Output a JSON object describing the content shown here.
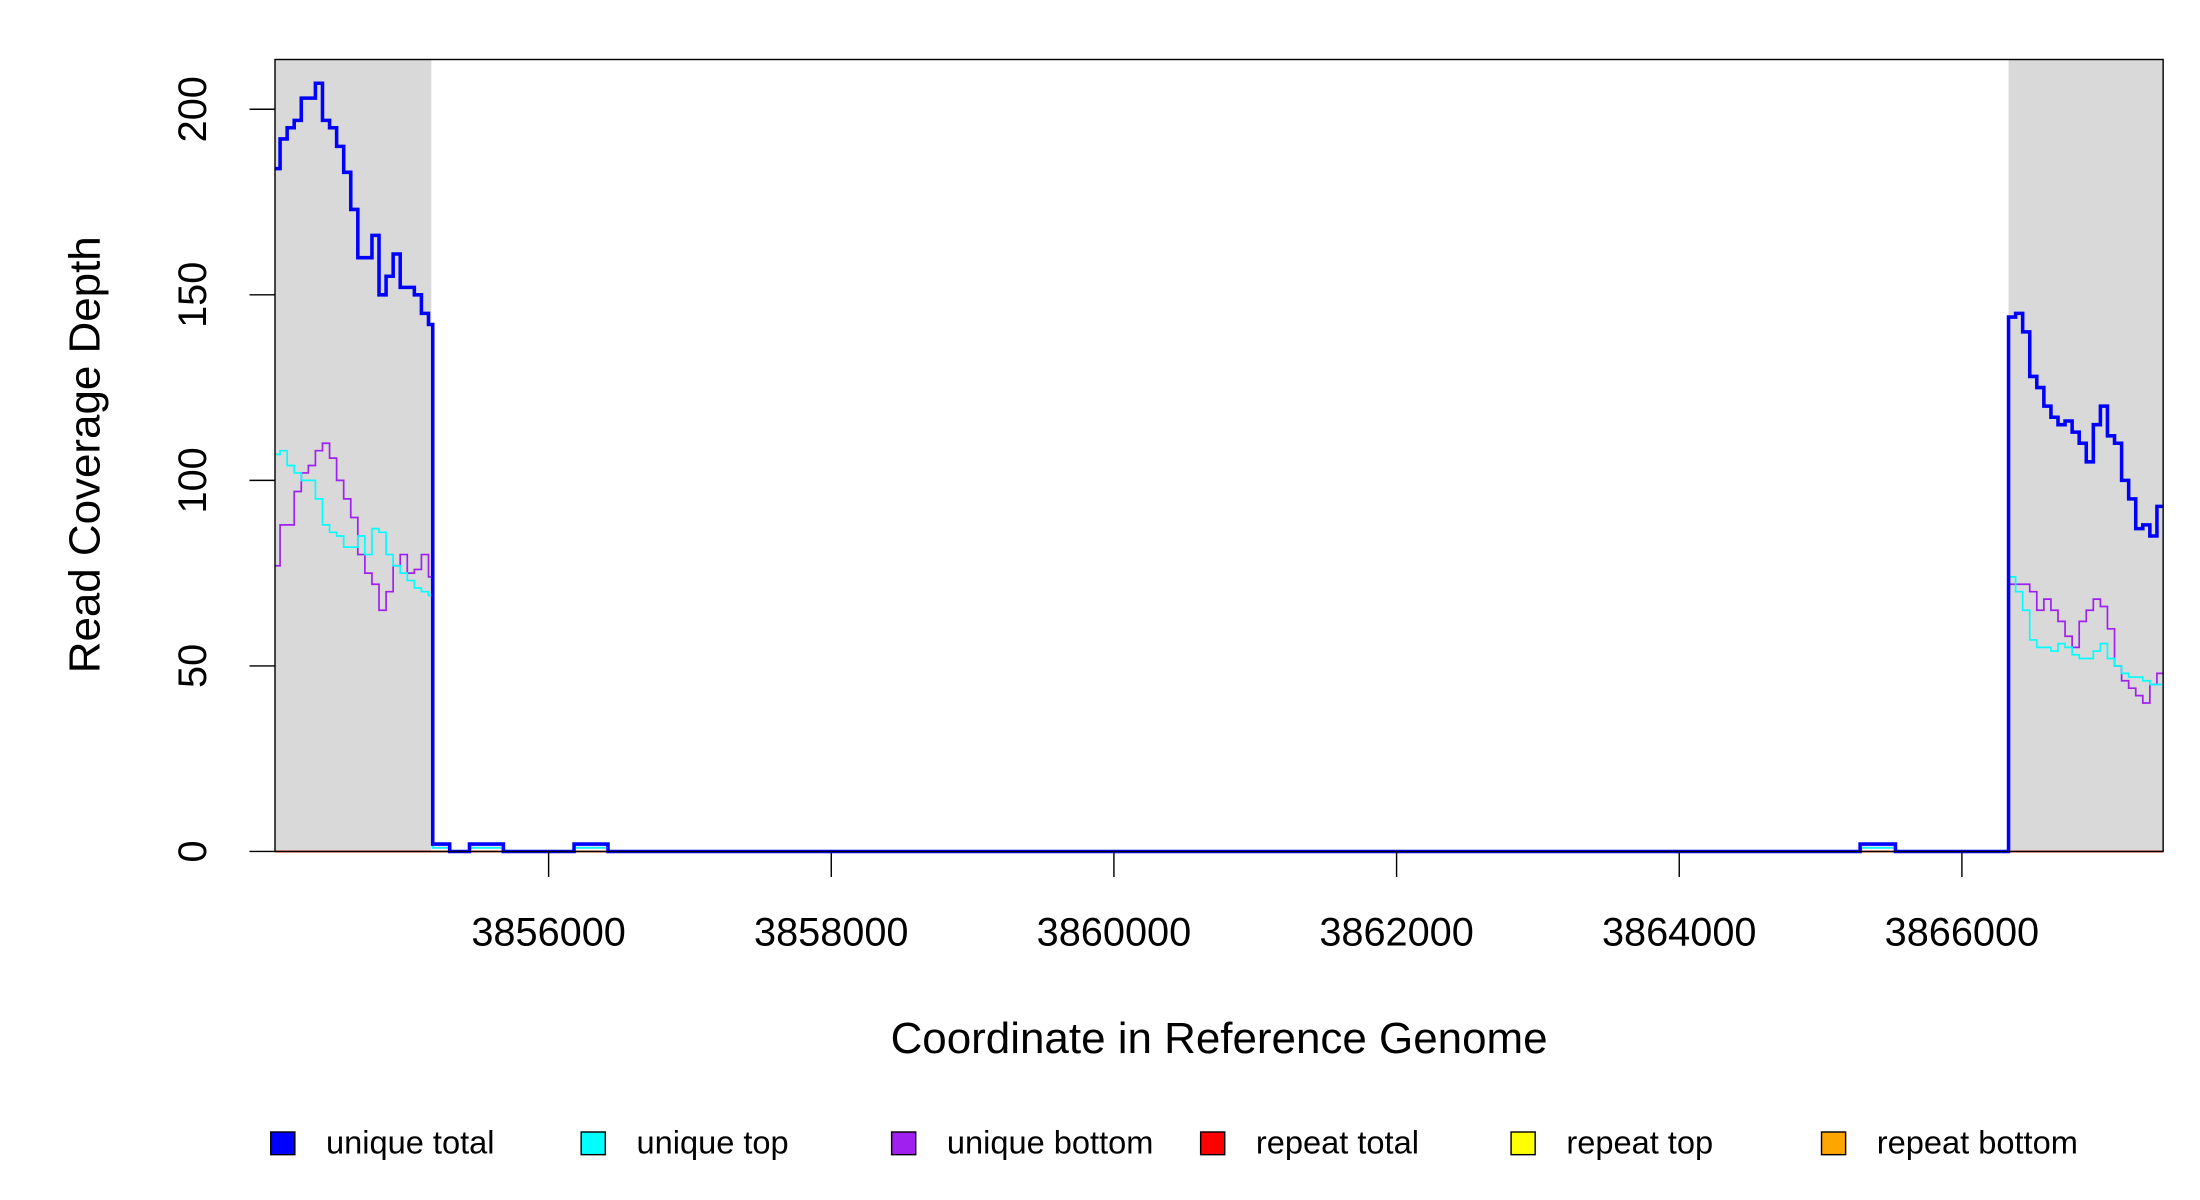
{
  "chart_data": {
    "type": "step",
    "xlabel": "Coordinate in Reference Genome",
    "ylabel": "Read Coverage Depth",
    "xlim": [
      3854064,
      3867424
    ],
    "ylim": [
      0,
      213.4
    ],
    "xticks": [
      3856000,
      3858000,
      3860000,
      3862000,
      3864000,
      3866000
    ],
    "yticks": [
      0,
      50,
      100,
      150,
      200
    ],
    "grid": false,
    "legend": "bottom",
    "highlight_ranges": [
      [
        3854064,
        3855170
      ],
      [
        3866330,
        3867424
      ]
    ],
    "highlight_color": "#d9d9d9",
    "x": [
      3854064,
      3854100,
      3854150,
      3854200,
      3854250,
      3854300,
      3854350,
      3854400,
      3854450,
      3854500,
      3854550,
      3854600,
      3854650,
      3854700,
      3854750,
      3854800,
      3854850,
      3854900,
      3854950,
      3855000,
      3855050,
      3855100,
      3855150,
      3855180,
      3855300,
      3855440,
      3855680,
      3856180,
      3856420,
      3865280,
      3865530,
      3866330,
      3866380,
      3866430,
      3866480,
      3866530,
      3866580,
      3866630,
      3866680,
      3866730,
      3866780,
      3866830,
      3866880,
      3866930,
      3866980,
      3867030,
      3867080,
      3867130,
      3867180,
      3867230,
      3867280,
      3867330,
      3867380
    ],
    "series": [
      {
        "name": "unique total",
        "color": "#0000ff",
        "width": 2.5,
        "values": [
          184,
          192,
          195,
          197,
          203,
          203,
          207,
          197,
          195,
          190,
          183,
          173,
          160,
          160,
          166,
          150,
          155,
          161,
          152,
          152,
          150,
          145,
          142,
          2,
          0,
          2,
          0,
          2,
          0,
          2,
          0,
          144,
          145,
          140,
          128,
          125,
          120,
          117,
          115,
          116,
          113,
          110,
          105,
          115,
          120,
          112,
          110,
          100,
          95,
          87,
          88,
          85,
          93
        ]
      },
      {
        "name": "unique top",
        "color": "#00ffff",
        "width": 1.2,
        "values": [
          107,
          108,
          104,
          102,
          100,
          100,
          95,
          88,
          86,
          85,
          82,
          82,
          85,
          80,
          87,
          86,
          80,
          77,
          75,
          73,
          71,
          70,
          69,
          1,
          0,
          1,
          0,
          1,
          0,
          1,
          0,
          74,
          70,
          65,
          57,
          55,
          55,
          54,
          56,
          55,
          53,
          52,
          52,
          54,
          56,
          52,
          50,
          48,
          47,
          47,
          46,
          45,
          45
        ]
      },
      {
        "name": "unique bottom",
        "color": "#a020f0",
        "width": 1.2,
        "values": [
          77,
          88,
          88,
          97,
          102,
          104,
          108,
          110,
          106,
          100,
          95,
          90,
          80,
          75,
          72,
          65,
          70,
          77,
          80,
          75,
          76,
          80,
          74,
          1,
          0,
          1,
          0,
          1,
          0,
          1,
          0,
          72,
          72,
          72,
          70,
          65,
          68,
          65,
          62,
          58,
          55,
          62,
          65,
          68,
          66,
          60,
          50,
          46,
          44,
          42,
          40,
          45,
          48
        ]
      },
      {
        "name": "repeat total",
        "color": "#ff0000",
        "width": 1.2,
        "values": [
          0,
          0,
          0,
          0,
          0,
          0,
          0,
          0,
          0,
          0,
          0,
          0,
          0,
          0,
          0,
          0,
          0,
          0,
          0,
          0,
          0,
          0,
          0,
          0,
          0,
          0,
          0,
          0,
          0,
          0,
          0,
          0,
          0,
          0,
          0,
          0,
          0,
          0,
          0,
          0,
          0,
          0,
          0,
          0,
          0,
          0,
          0,
          0,
          0,
          0,
          0,
          0,
          0
        ]
      },
      {
        "name": "repeat top",
        "color": "#ffff00",
        "width": 1.2,
        "values": [
          0,
          0,
          0,
          0,
          0,
          0,
          0,
          0,
          0,
          0,
          0,
          0,
          0,
          0,
          0,
          0,
          0,
          0,
          0,
          0,
          0,
          0,
          0,
          0,
          0,
          0,
          0,
          0,
          0,
          0,
          0,
          0,
          0,
          0,
          0,
          0,
          0,
          0,
          0,
          0,
          0,
          0,
          0,
          0,
          0,
          0,
          0,
          0,
          0,
          0,
          0,
          0,
          0
        ]
      },
      {
        "name": "repeat bottom",
        "color": "#ffa500",
        "width": 1.2,
        "values": [
          0,
          0,
          0,
          0,
          0,
          0,
          0,
          0,
          0,
          0,
          0,
          0,
          0,
          0,
          0,
          0,
          0,
          0,
          0,
          0,
          0,
          0,
          0,
          0,
          0,
          0,
          0,
          0,
          0,
          0,
          0,
          0,
          0,
          0,
          0,
          0,
          0,
          0,
          0,
          0,
          0,
          0,
          0,
          0,
          0,
          0,
          0,
          0,
          0,
          0,
          0,
          0,
          0
        ]
      }
    ]
  }
}
